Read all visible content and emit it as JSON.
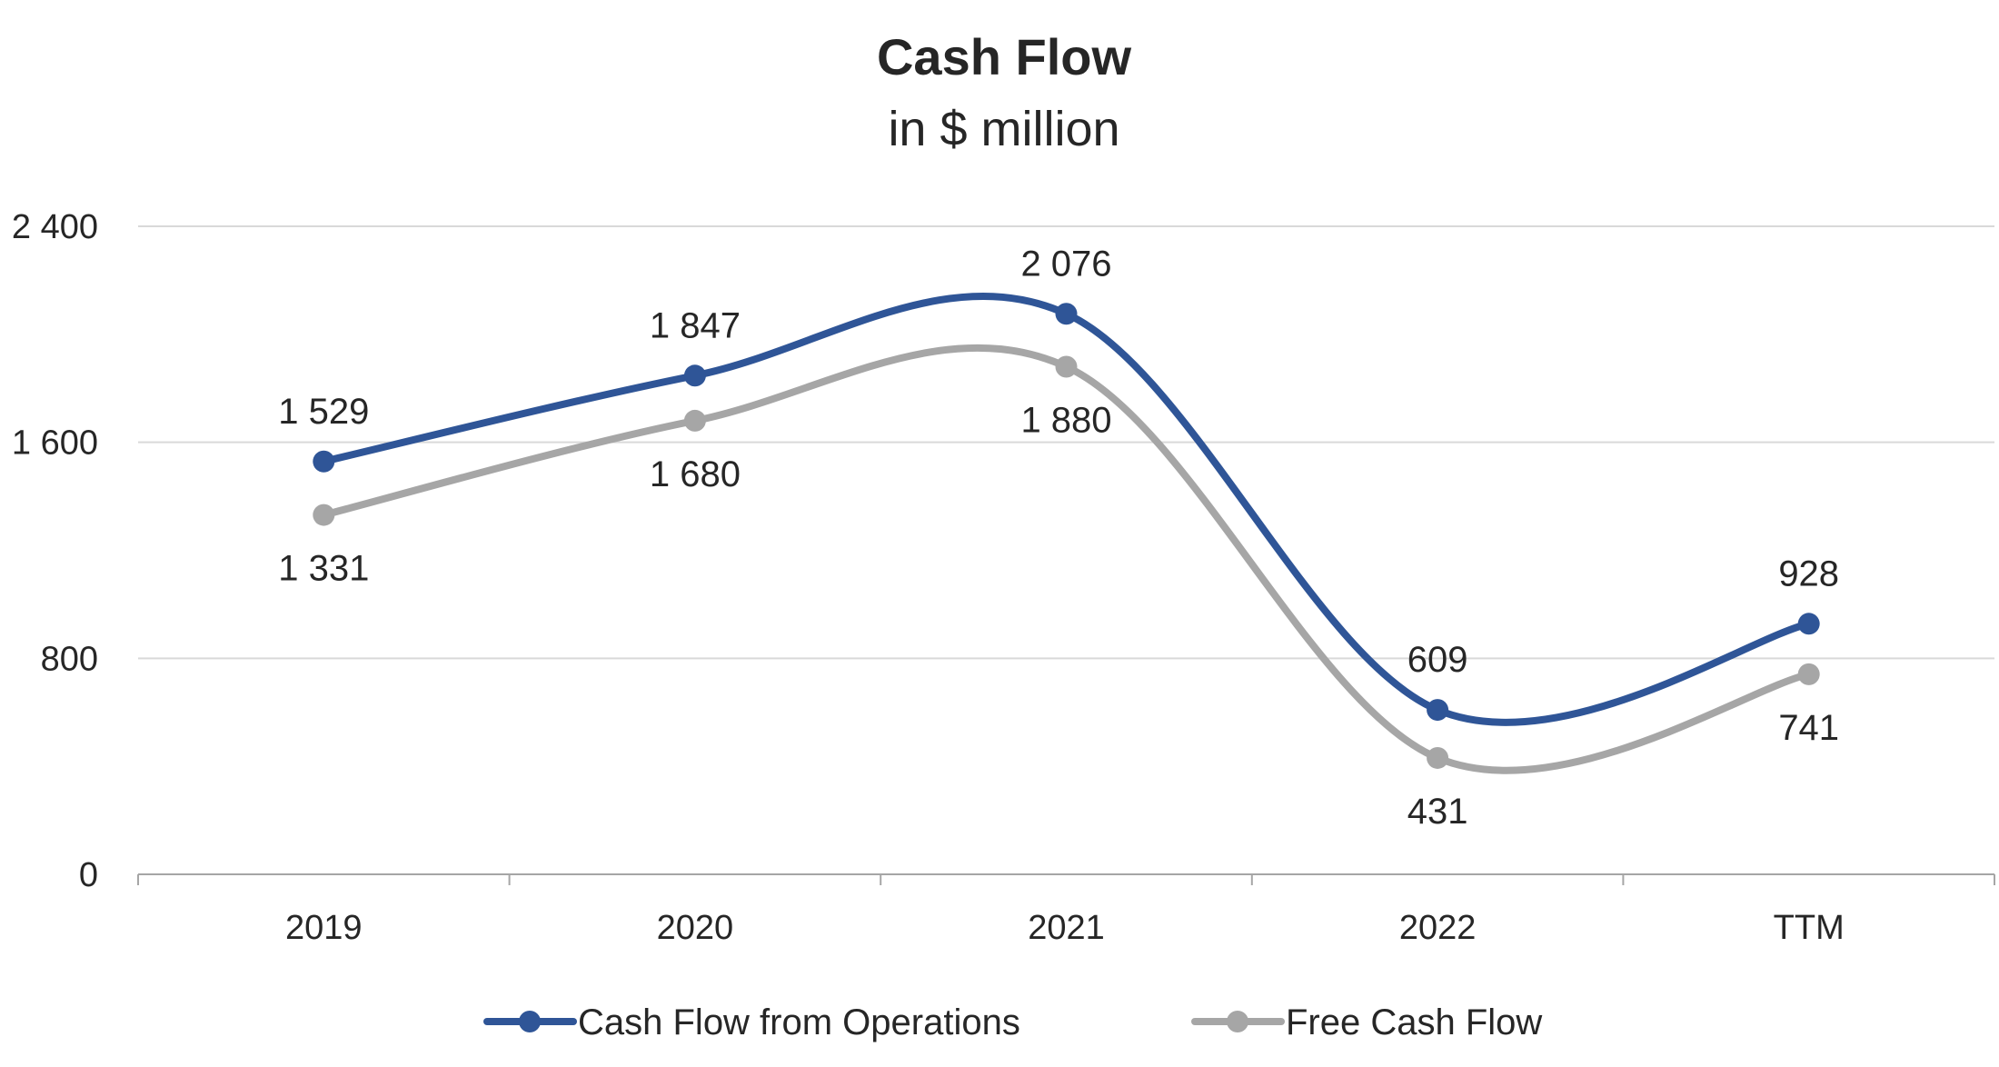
{
  "chart_data": {
    "type": "line",
    "title": "Cash Flow",
    "subtitle": "in $ million",
    "categories": [
      "2019",
      "2020",
      "2021",
      "2022",
      "TTM"
    ],
    "series": [
      {
        "name": "Cash Flow from Operations",
        "color": "#2F5597",
        "values": [
          1529,
          1847,
          2076,
          609,
          928
        ],
        "labels": [
          "1 529",
          "1 847",
          "2 076",
          "609",
          "928"
        ],
        "label_position": [
          "above",
          "above",
          "above",
          "above",
          "above"
        ]
      },
      {
        "name": "Free Cash Flow",
        "color": "#A6A6A6",
        "values": [
          1331,
          1680,
          1880,
          431,
          741
        ],
        "labels": [
          "1 331",
          "1 680",
          "1 880",
          "431",
          "741"
        ],
        "label_position": [
          "below",
          "below",
          "below",
          "below",
          "below"
        ]
      }
    ],
    "ylim": [
      0,
      2400
    ],
    "yticks": [
      0,
      800,
      1600,
      2400
    ],
    "ytick_labels": [
      "0",
      "800",
      "1 600",
      "2 400"
    ],
    "smooth": true,
    "grid": "horizontal",
    "legend": "bottom"
  }
}
